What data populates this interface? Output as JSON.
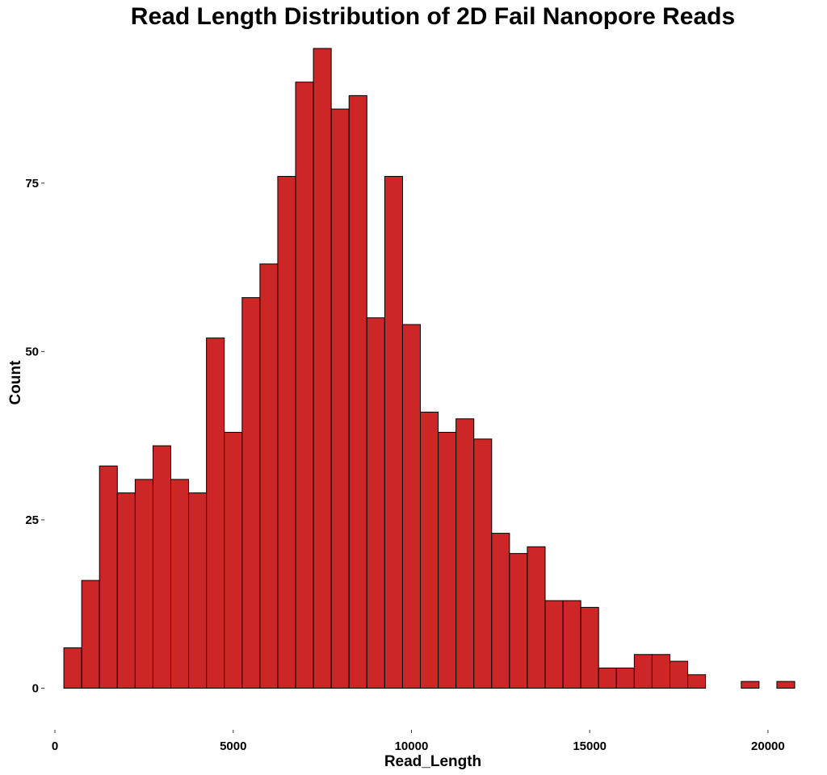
{
  "chart_data": {
    "type": "bar",
    "title": "Read Length Distribution of 2D Fail Nanopore Reads",
    "xlabel": "Read_Length",
    "ylabel": "Count",
    "xlim": [
      -250,
      20750
    ],
    "ylim": [
      -4.5,
      95
    ],
    "x_ticks": [
      0,
      5000,
      10000,
      15000,
      20000
    ],
    "x_tick_labels": [
      "0",
      "5000",
      "10000",
      "15000",
      "20000"
    ],
    "y_ticks": [
      0,
      25,
      50,
      75
    ],
    "y_tick_labels": [
      "0",
      "25",
      "50",
      "75"
    ],
    "bin_width": 500,
    "bin_start": 250,
    "values": [
      6,
      16,
      33,
      29,
      31,
      36,
      31,
      29,
      52,
      38,
      58,
      63,
      76,
      90,
      95,
      86,
      88,
      55,
      76,
      54,
      41,
      38,
      40,
      37,
      23,
      20,
      21,
      13,
      13,
      12,
      3,
      3,
      5,
      5,
      4,
      2,
      0,
      0,
      1,
      0,
      1
    ],
    "grid": false,
    "legend": "none",
    "colors": {
      "bar_fill": "#CC2626",
      "bar_stroke": "#000000"
    }
  }
}
